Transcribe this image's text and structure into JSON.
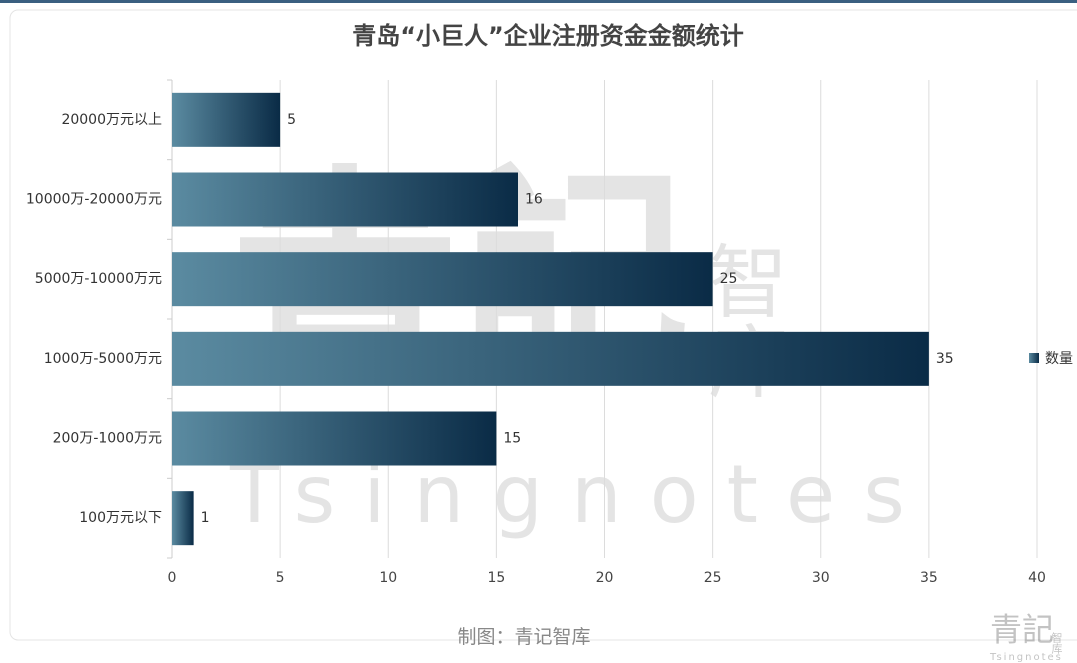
{
  "chart_data": {
    "type": "bar",
    "orientation": "horizontal",
    "title": "青岛“小巨人”企业注册资金金额统计",
    "categories": [
      "20000万元以上",
      "10000万-20000万元",
      "5000万-10000万元",
      "1000万-5000万元",
      "200万-1000万元",
      "100万元以下"
    ],
    "series": [
      {
        "name": "数量",
        "color": "#0a2b46",
        "gradient": [
          "#5b8ba1",
          "#0a2b46"
        ],
        "values": [
          5,
          16,
          25,
          35,
          15,
          1
        ]
      }
    ],
    "xlim": [
      0,
      40
    ],
    "xticks": [
      0,
      5,
      10,
      15,
      20,
      25,
      30,
      35,
      40
    ],
    "grid": true,
    "legend": "right",
    "footer": "制图：青记智库",
    "watermark": {
      "main": "青記",
      "side": "智库",
      "latin": "Tsingnotes"
    }
  }
}
